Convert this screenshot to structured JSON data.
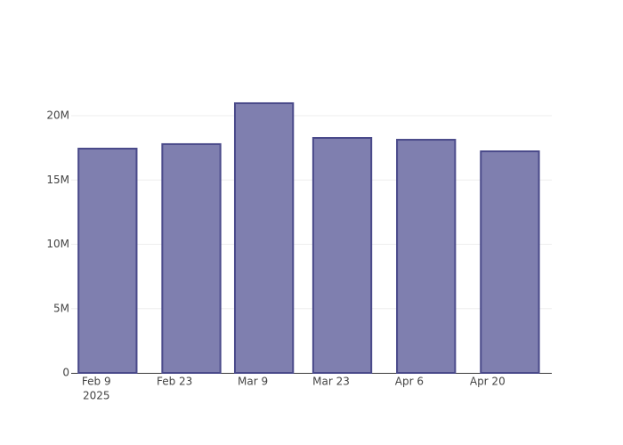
{
  "chart_data": {
    "type": "bar",
    "x": [
      "2025-02-11",
      "2025-02-26",
      "2025-03-11",
      "2025-03-25",
      "2025-04-09",
      "2025-04-24"
    ],
    "values": [
      17440000,
      17790000,
      20970000,
      18270000,
      18130000,
      17230000
    ],
    "color": "#7f7faf",
    "edge_color": "#4a4a8a",
    "xlim": [
      "2025-02-04T12:00",
      "2025-05-01T12:00"
    ],
    "xticks": [
      {
        "value": "2025-02-09",
        "label": "Feb 9"
      },
      {
        "value": "2025-02-23",
        "label": "Feb 23"
      },
      {
        "value": "2025-03-09",
        "label": "Mar 9"
      },
      {
        "value": "2025-03-23",
        "label": "Mar 23"
      },
      {
        "value": "2025-04-06",
        "label": "Apr 6"
      },
      {
        "value": "2025-04-20",
        "label": "Apr 20"
      }
    ],
    "xtick_year_label": "2025",
    "ylim": [
      0,
      22300000
    ],
    "yticks": [
      0,
      {
        "value": 5000000,
        "label": "5M"
      },
      {
        "value": 10000000,
        "label": "10M"
      },
      {
        "value": 15000000,
        "label": "15M"
      },
      {
        "value": 20000000,
        "label": "20M"
      }
    ],
    "grid": true
  }
}
